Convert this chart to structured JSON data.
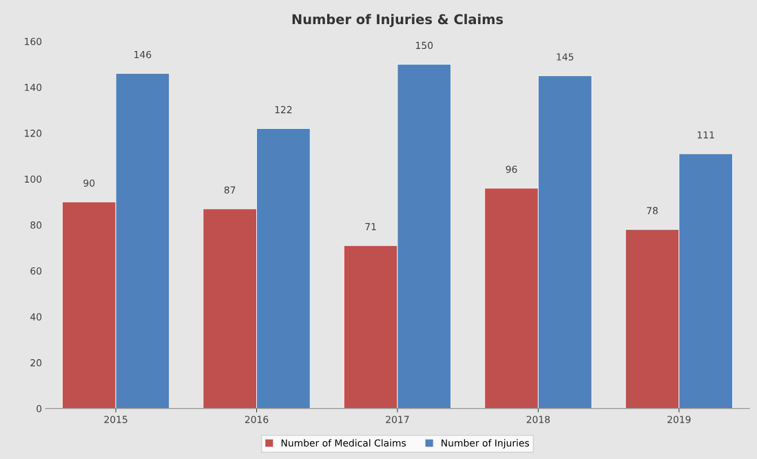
{
  "chart_data": {
    "type": "bar",
    "title": "Number of Injuries & Claims",
    "categories": [
      "2015",
      "2016",
      "2017",
      "2018",
      "2019"
    ],
    "series": [
      {
        "name": "Number of Medical Claims",
        "color": "#c0504d",
        "values": [
          90,
          87,
          71,
          96,
          78
        ]
      },
      {
        "name": "Number of Injuries",
        "color": "#4f81bd",
        "values": [
          146,
          122,
          150,
          145,
          111
        ]
      }
    ],
    "ylim": [
      0,
      160
    ],
    "yticks": [
      0,
      20,
      40,
      60,
      80,
      100,
      120,
      140,
      160
    ],
    "data_labels": true,
    "grid": false,
    "legend": "bottom"
  }
}
